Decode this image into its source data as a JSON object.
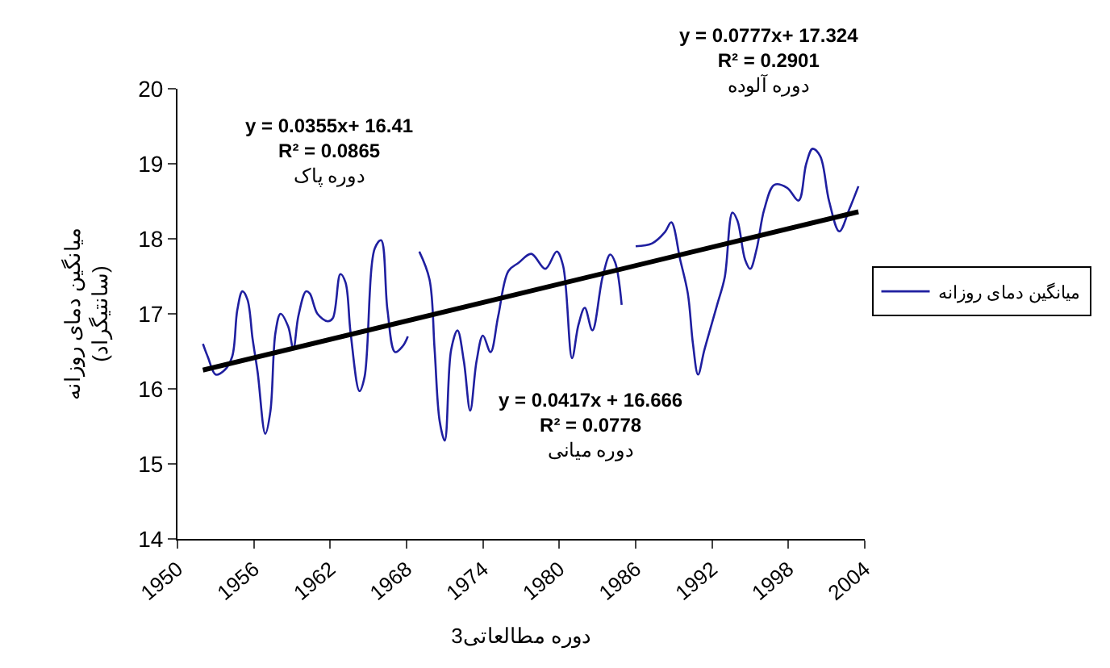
{
  "chart_data": {
    "type": "line",
    "xlabel": "3دوره مطالعاتی",
    "ylabel": "میانگین دمای روزانه\n(سانتیگراد)",
    "xlim": [
      1950,
      2004
    ],
    "xticks": [
      1950,
      1956,
      1962,
      1968,
      1974,
      1980,
      1986,
      1992,
      1998,
      2004
    ],
    "ylim": [
      14,
      20
    ],
    "yticks": [
      14,
      15,
      16,
      17,
      18,
      19,
      20
    ],
    "legend": "right",
    "marker": "none",
    "line_style": "solid",
    "series": [
      {
        "name": "میانگین دمای روزانه",
        "color": "#1f1fa0",
        "x": [
          1952.0,
          1952.4,
          1953.0,
          1953.7,
          1954.3,
          1954.7,
          1955.1,
          1955.5,
          1955.9,
          1956.3,
          1956.9,
          1957.3,
          1957.7,
          1958.1,
          1958.7,
          1959.1,
          1959.5,
          1960.1,
          1960.4,
          1961.0,
          1961.8,
          1962.2,
          1962.8,
          1963.2,
          1963.6,
          1964.3,
          1964.7,
          1965.5,
          1966.0,
          1966.5,
          1967.1,
          1967.7,
          1968.1,
          1968.5,
          1969.0,
          1969.8,
          1970.2,
          1970.6,
          1971.0,
          1971.5,
          1972.0,
          1972.5,
          1973.0,
          1973.5,
          1974.0,
          1974.6,
          1975.2,
          1976.0,
          1976.8,
          1977.8,
          1978.9,
          1979.8,
          1980.3,
          1981.0,
          1981.5,
          1982.0,
          1982.6,
          1983.4,
          1984.0,
          1984.4,
          1984.9,
          1985.5,
          1986.0,
          1987.3,
          1988.3,
          1988.8,
          1989.5,
          1990.1,
          1990.5,
          1990.9,
          1991.4,
          1992.4,
          1993.0,
          1993.6,
          1994.0,
          1994.6,
          1995.0,
          1995.5,
          1996.1,
          1996.9,
          1997.9,
          1998.8,
          1999.4,
          1999.9,
          2000.5,
          2001.2,
          2002.0,
          2002.8,
          2003.5
        ],
        "values": [
          16.6,
          16.42,
          16.19,
          16.25,
          16.43,
          17.05,
          17.3,
          17.19,
          16.67,
          16.22,
          15.4,
          15.7,
          16.75,
          17.0,
          16.83,
          16.53,
          16.97,
          17.3,
          17.27,
          17.0,
          16.9,
          16.94,
          17.53,
          17.42,
          16.75,
          15.97,
          16.16,
          17.87,
          17.98,
          17.05,
          16.49,
          16.57,
          16.7,
          null,
          17.83,
          17.46,
          16.53,
          15.57,
          15.31,
          16.52,
          16.78,
          16.37,
          15.71,
          16.37,
          16.71,
          16.49,
          16.97,
          17.57,
          17.68,
          17.8,
          17.6,
          17.83,
          17.64,
          16.41,
          16.85,
          17.08,
          16.78,
          17.49,
          17.79,
          17.68,
          17.12,
          null,
          17.9,
          17.94,
          18.09,
          18.22,
          17.72,
          17.27,
          16.6,
          16.19,
          16.52,
          17.12,
          17.49,
          18.35,
          18.24,
          17.72,
          17.6,
          17.86,
          18.39,
          18.72,
          18.68,
          18.51,
          19.0,
          19.2,
          19.1,
          18.5,
          18.1,
          18.4,
          18.7
        ]
      },
      {
        "color": "#000000",
        "x": [
          1952.0,
          2003.5
        ],
        "values": [
          16.25,
          18.36
        ]
      }
    ],
    "annotations": [
      "y = 0.0355x+ 16.41\nR² = 0.0865\nدوره پاک",
      "y = 0.0417x + 16.666\nR² = 0.0778\nدوره میانی",
      "y = 0.0777x+ 17.324\nR² = 0.2901\nدوره آلوده"
    ]
  }
}
